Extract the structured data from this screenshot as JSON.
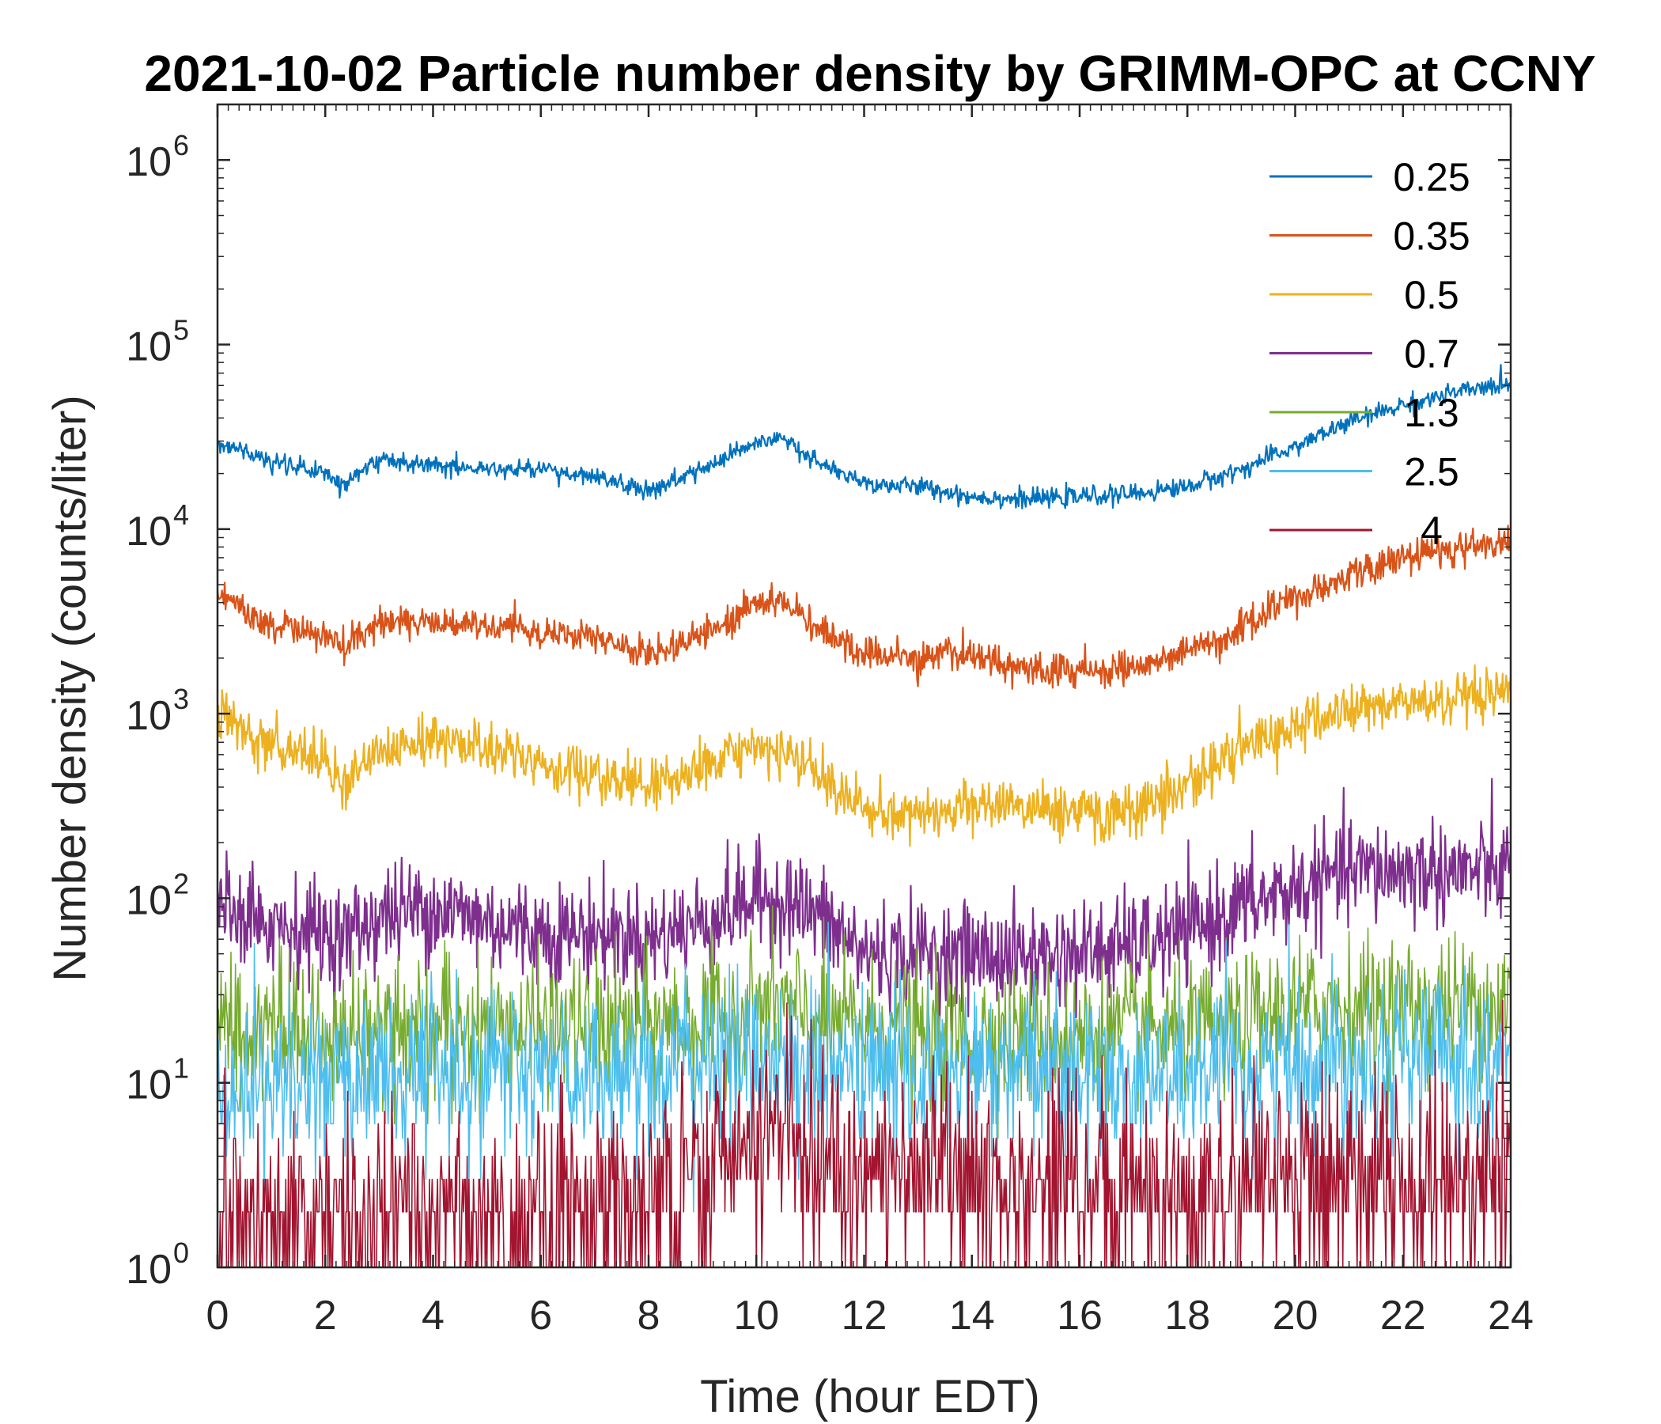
{
  "chart_data": {
    "type": "line",
    "title": "2021-10-02 Particle number density by GRIMM-OPC at CCNY",
    "xlabel": "Time (hour EDT)",
    "ylabel": "Number density (counts/liter)",
    "xlim": [
      0,
      24
    ],
    "ylim": [
      1,
      2000000
    ],
    "yscale": "log",
    "xticks": [
      0,
      2,
      4,
      6,
      8,
      10,
      12,
      14,
      16,
      18,
      20,
      22,
      24
    ],
    "yticks": [
      {
        "base": "10",
        "exp": "0",
        "value": 1
      },
      {
        "base": "10",
        "exp": "1",
        "value": 10
      },
      {
        "base": "10",
        "exp": "2",
        "value": 100
      },
      {
        "base": "10",
        "exp": "3",
        "value": 1000
      },
      {
        "base": "10",
        "exp": "4",
        "value": 10000
      },
      {
        "base": "10",
        "exp": "5",
        "value": 100000
      },
      {
        "base": "10",
        "exp": "6",
        "value": 1000000
      }
    ],
    "legend_position": "top-right",
    "x": [
      0,
      1,
      2,
      2.3,
      3,
      4,
      5,
      6,
      7,
      8,
      9,
      10,
      10.5,
      11,
      12,
      13,
      14,
      15,
      16,
      17,
      18,
      19,
      20,
      21,
      22,
      23,
      24
    ],
    "series": [
      {
        "name": "0.25",
        "color": "#0072BD",
        "noise": 0.05,
        "values": [
          30000,
          23000,
          20000,
          17500,
          24000,
          22500,
          21000,
          21000,
          19000,
          16000,
          21000,
          29000,
          31000,
          24000,
          17500,
          17000,
          15000,
          14500,
          15000,
          15500,
          17000,
          21000,
          28000,
          38000,
          47000,
          55000,
          62000
        ]
      },
      {
        "name": "0.35",
        "color": "#D95319",
        "noise": 0.09,
        "values": [
          4500,
          3000,
          2600,
          2200,
          3200,
          3100,
          3000,
          2800,
          2500,
          2100,
          2700,
          3900,
          4200,
          3000,
          2100,
          2000,
          2100,
          1750,
          1700,
          1800,
          2100,
          3000,
          4200,
          5600,
          7000,
          7800,
          8500
        ]
      },
      {
        "name": "0.5",
        "color": "#EDB120",
        "noise": 0.14,
        "values": [
          1000,
          650,
          560,
          430,
          660,
          720,
          650,
          520,
          450,
          400,
          500,
          650,
          620,
          480,
          300,
          290,
          310,
          320,
          290,
          300,
          420,
          650,
          850,
          1050,
          1150,
          1150,
          1250
        ]
      },
      {
        "name": "0.7",
        "color": "#7E2F8E",
        "noise": 0.28,
        "values": [
          100,
          75,
          65,
          60,
          80,
          90,
          75,
          65,
          65,
          60,
          75,
          100,
          100,
          85,
          50,
          50,
          50,
          48,
          50,
          55,
          65,
          90,
          110,
          140,
          140,
          140,
          140
        ]
      },
      {
        "name": "1.3",
        "color": "#77AC30",
        "noise": 0.38,
        "values": [
          22,
          20,
          18,
          18,
          20,
          20,
          20,
          19,
          20,
          20,
          21,
          25,
          26,
          22,
          20,
          18,
          18,
          18,
          18,
          19,
          18,
          20,
          25,
          26,
          26,
          26,
          28
        ]
      },
      {
        "name": "2.5",
        "color": "#4DBEEE",
        "noise": 0.45,
        "values": [
          10,
          10,
          10,
          10,
          11,
          12,
          12,
          11,
          11,
          12,
          13,
          14,
          14,
          12,
          12,
          11,
          11,
          11,
          11,
          11,
          11,
          11,
          13,
          14,
          14,
          14,
          13
        ]
      },
      {
        "name": "4",
        "color": "#A2142F",
        "noise": 0.55,
        "values": [
          2,
          2,
          2,
          2,
          2,
          2,
          2,
          2,
          2,
          2.5,
          3,
          5,
          5.5,
          4,
          3,
          3,
          3,
          2.5,
          2.5,
          2.5,
          2.5,
          2.5,
          3,
          3,
          3,
          3,
          3
        ]
      }
    ]
  }
}
